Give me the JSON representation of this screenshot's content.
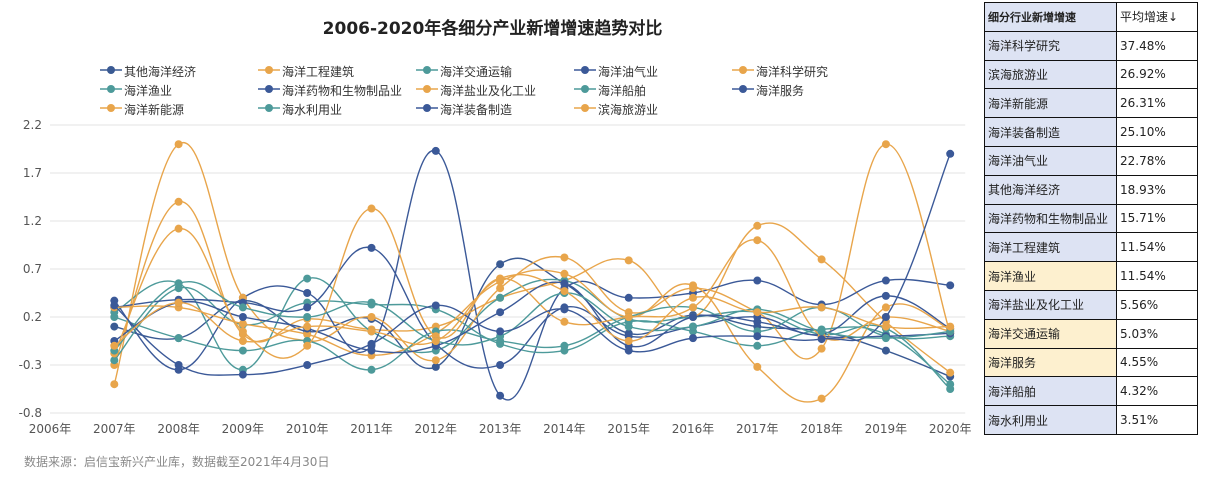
{
  "chart_data": {
    "type": "line",
    "title": "2006-2020年各细分产业新增增速趋势对比",
    "categories": [
      "2006年",
      "2007年",
      "2008年",
      "2009年",
      "2010年",
      "2011年",
      "2012年",
      "2013年",
      "2014年",
      "2015年",
      "2016年",
      "2017年",
      "2018年",
      "2019年",
      "2020年"
    ],
    "ylim": [
      -0.8,
      2.2
    ],
    "yticks": [
      "2.2",
      "1.7",
      "1.2",
      "0.7",
      "0.2",
      "-0.3",
      "-0.8"
    ],
    "grid": true,
    "legend_position": "top",
    "smooth": true,
    "series": [
      {
        "name": "其他海洋经济",
        "color": "#3a5a93",
        "values": [
          null,
          0.1,
          -0.02,
          0.37,
          0.05,
          0.18,
          -0.32,
          0.75,
          0.55,
          0.03,
          0.22,
          0.1,
          0.05,
          -0.15,
          -0.42
        ]
      },
      {
        "name": "海洋工程建筑",
        "color": "#e8a54b",
        "values": [
          null,
          -0.3,
          1.4,
          0.02,
          0.18,
          0.07,
          0.1,
          0.4,
          0.58,
          0.79,
          0.2,
          1.15,
          0.8,
          0.15,
          -0.38
        ]
      },
      {
        "name": "海洋交通运输",
        "color": "#4d9a9a",
        "values": [
          null,
          0.25,
          0.55,
          -0.35,
          0.6,
          0.05,
          -0.15,
          0.4,
          0.58,
          0.18,
          0.2,
          0.25,
          0.02,
          0.08,
          -0.55
        ]
      },
      {
        "name": "海洋油气业",
        "color": "#3b5998",
        "values": [
          null,
          0.37,
          -0.35,
          0.4,
          0.45,
          -0.1,
          1.93,
          -0.62,
          0.5,
          0.4,
          0.45,
          0.58,
          0.33,
          0.58,
          0.53
        ]
      },
      {
        "name": "海洋科学研究",
        "color": "#e8a54b",
        "values": [
          null,
          -0.5,
          2.0,
          0.4,
          -0.05,
          0.2,
          -0.25,
          0.5,
          0.82,
          0.25,
          0.5,
          0.25,
          -0.13,
          2.0,
          0.03
        ]
      },
      {
        "name": "海洋渔业",
        "color": "#4d9a9a",
        "values": [
          null,
          -0.25,
          0.5,
          0.12,
          0.35,
          0.33,
          0.28,
          -0.08,
          -0.15,
          0.15,
          0.05,
          -0.1,
          0.07,
          0.02,
          -0.5
        ]
      },
      {
        "name": "海洋药物和生物制品业",
        "color": "#3b5998",
        "values": [
          null,
          0.3,
          0.38,
          0.35,
          0.3,
          0.92,
          -0.08,
          -0.3,
          0.3,
          0.0,
          0.1,
          0.2,
          0.02,
          0.42,
          0.08
        ]
      },
      {
        "name": "海洋盐业及化工业",
        "color": "#e8a54b",
        "values": [
          null,
          0.3,
          0.3,
          0.13,
          0.02,
          -0.2,
          0.03,
          0.57,
          0.65,
          0.2,
          0.53,
          -0.32,
          -0.65,
          0.3,
          0.07
        ]
      },
      {
        "name": "海洋船舶",
        "color": "#4d9a9a",
        "values": [
          null,
          0.2,
          -0.02,
          -0.15,
          -0.05,
          -0.35,
          0.05,
          -0.05,
          -0.1,
          0.2,
          0.3,
          0.05,
          0.3,
          0.0,
          0.0
        ]
      },
      {
        "name": "海洋服务",
        "color": "#3b5998",
        "values": [
          null,
          -0.05,
          0.35,
          0.2,
          0.08,
          -0.15,
          -0.1,
          0.25,
          0.55,
          -0.1,
          0.2,
          0.15,
          0.0,
          0.0,
          0.03
        ]
      },
      {
        "name": "海洋新能源",
        "color": "#e8a54b",
        "values": [
          null,
          -0.18,
          1.12,
          0.05,
          -0.1,
          1.33,
          0.0,
          0.6,
          0.15,
          0.2,
          0.3,
          1.0,
          0.0,
          0.2,
          0.05
        ]
      },
      {
        "name": "海水利用业",
        "color": "#4d9a9a",
        "values": [
          null,
          -0.15,
          0.55,
          0.3,
          0.2,
          0.35,
          -0.05,
          0.0,
          0.45,
          0.1,
          0.1,
          0.28,
          0.05,
          -0.02,
          0.05
        ]
      },
      {
        "name": "海洋装备制造",
        "color": "#3b5998",
        "values": [
          null,
          0.32,
          -0.3,
          -0.4,
          -0.3,
          -0.08,
          0.32,
          0.05,
          0.28,
          -0.15,
          -0.02,
          0.0,
          -0.03,
          0.2,
          1.9
        ]
      },
      {
        "name": "滨海旅游业",
        "color": "#e8a54b",
        "values": [
          null,
          -0.1,
          0.35,
          -0.05,
          0.1,
          0.05,
          -0.05,
          0.6,
          0.47,
          -0.05,
          0.4,
          0.25,
          0.3,
          0.1,
          0.1
        ]
      }
    ],
    "source": "数据来源：启信宝新兴产业库，数据截至2021年4月30日"
  },
  "table": {
    "header_industry": "细分行业新增增速",
    "header_rate": "平均增速↓",
    "rows": [
      {
        "name": "海洋科学研究",
        "rate": "37.48%",
        "bg": "#dde3f3"
      },
      {
        "name": "滨海旅游业",
        "rate": "26.92%",
        "bg": "#dde3f3"
      },
      {
        "name": "海洋新能源",
        "rate": "26.31%",
        "bg": "#dde3f3"
      },
      {
        "name": "海洋装备制造",
        "rate": "25.10%",
        "bg": "#dde3f3"
      },
      {
        "name": "海洋油气业",
        "rate": "22.78%",
        "bg": "#dde3f3"
      },
      {
        "name": "其他海洋经济",
        "rate": "18.93%",
        "bg": "#dde3f3"
      },
      {
        "name": "海洋药物和生物制品业",
        "rate": "15.71%",
        "bg": "#dde3f3"
      },
      {
        "name": "海洋工程建筑",
        "rate": "11.54%",
        "bg": "#dde3f3"
      },
      {
        "name": "海洋渔业",
        "rate": "11.54%",
        "bg": "#fdf0cf"
      },
      {
        "name": "海洋盐业及化工业",
        "rate": "5.56%",
        "bg": "#dde3f3"
      },
      {
        "name": "海洋交通运输",
        "rate": "5.03%",
        "bg": "#fdf0cf"
      },
      {
        "name": "海洋服务",
        "rate": "4.55%",
        "bg": "#fdf0cf"
      },
      {
        "name": "海洋船舶",
        "rate": "4.32%",
        "bg": "#dde3f3"
      },
      {
        "name": "海水利用业",
        "rate": "3.51%",
        "bg": "#dde3f3"
      }
    ]
  }
}
